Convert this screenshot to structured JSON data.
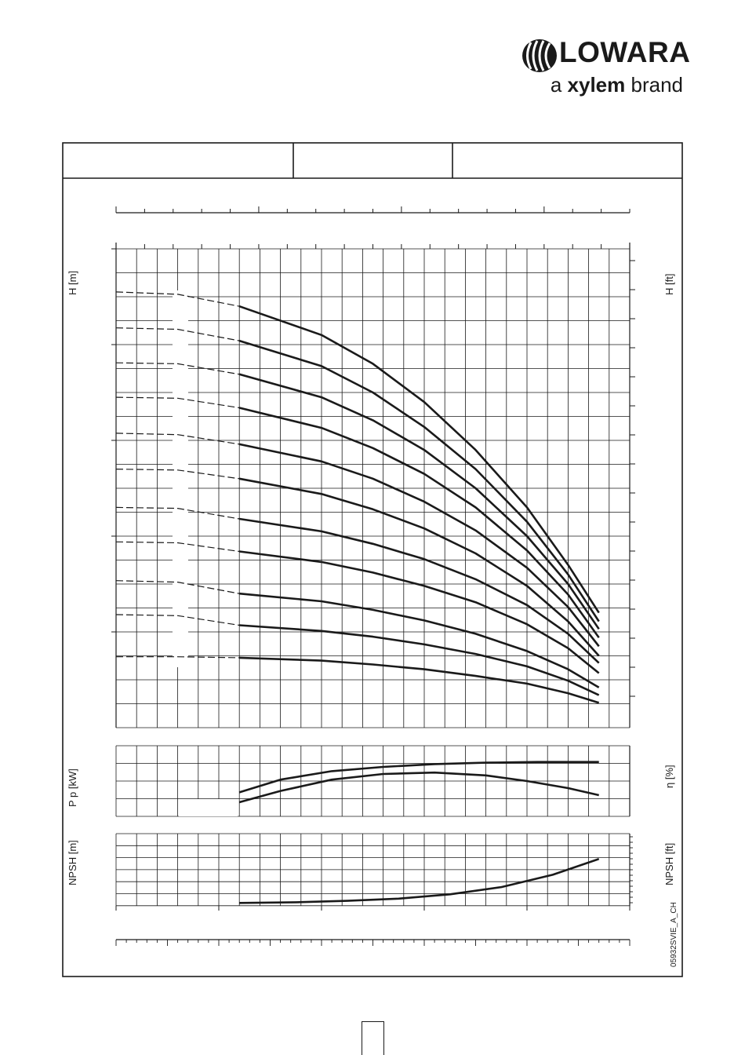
{
  "brand": {
    "name": "LOWARA",
    "tagline_prefix": "a ",
    "tagline_brand": "xylem",
    "tagline_suffix": " brand"
  },
  "header_table": {
    "cells": [
      "",
      "",
      ""
    ]
  },
  "drawing_code": "05932SVIE_A_CH",
  "chart_data": [
    {
      "type": "line",
      "name": "head",
      "ylabel_left": "H [m]",
      "ylabel_right": "H [ft]",
      "x_range": [
        0,
        1
      ],
      "y_range": [
        0,
        1
      ],
      "dashed_segment_x": [
        0,
        0.24
      ],
      "series": [
        {
          "x": [
            0,
            0.12,
            0.24,
            0.4,
            0.5,
            0.6,
            0.7,
            0.8,
            0.88,
            0.94
          ],
          "y": [
            0.91,
            0.905,
            0.88,
            0.82,
            0.76,
            0.68,
            0.58,
            0.46,
            0.34,
            0.24
          ]
        },
        {
          "x": [
            0,
            0.12,
            0.24,
            0.4,
            0.5,
            0.6,
            0.7,
            0.8,
            0.88,
            0.94
          ],
          "y": [
            0.835,
            0.832,
            0.808,
            0.755,
            0.7,
            0.628,
            0.54,
            0.43,
            0.32,
            0.222
          ]
        },
        {
          "x": [
            0,
            0.12,
            0.24,
            0.4,
            0.5,
            0.6,
            0.7,
            0.8,
            0.88,
            0.94
          ],
          "y": [
            0.762,
            0.76,
            0.738,
            0.69,
            0.642,
            0.58,
            0.5,
            0.4,
            0.3,
            0.206
          ]
        },
        {
          "x": [
            0,
            0.12,
            0.24,
            0.4,
            0.5,
            0.6,
            0.7,
            0.8,
            0.88,
            0.94
          ],
          "y": [
            0.69,
            0.688,
            0.668,
            0.626,
            0.584,
            0.53,
            0.46,
            0.37,
            0.278,
            0.188
          ]
        },
        {
          "x": [
            0,
            0.12,
            0.24,
            0.4,
            0.5,
            0.6,
            0.7,
            0.8,
            0.88,
            0.94
          ],
          "y": [
            0.615,
            0.612,
            0.592,
            0.556,
            0.52,
            0.472,
            0.412,
            0.334,
            0.252,
            0.17
          ]
        },
        {
          "x": [
            0,
            0.12,
            0.24,
            0.4,
            0.5,
            0.6,
            0.7,
            0.8,
            0.88,
            0.94
          ],
          "y": [
            0.54,
            0.538,
            0.52,
            0.488,
            0.456,
            0.416,
            0.364,
            0.296,
            0.222,
            0.15
          ]
        },
        {
          "x": [
            0,
            0.12,
            0.24,
            0.4,
            0.5,
            0.6,
            0.7,
            0.8,
            0.88,
            0.94
          ],
          "y": [
            0.46,
            0.458,
            0.436,
            0.41,
            0.384,
            0.352,
            0.31,
            0.256,
            0.196,
            0.135
          ]
        },
        {
          "x": [
            0,
            0.12,
            0.24,
            0.4,
            0.5,
            0.6,
            0.7,
            0.8,
            0.88,
            0.94
          ],
          "y": [
            0.388,
            0.386,
            0.368,
            0.346,
            0.324,
            0.296,
            0.262,
            0.216,
            0.166,
            0.114
          ]
        },
        {
          "x": [
            0,
            0.12,
            0.24,
            0.4,
            0.5,
            0.6,
            0.7,
            0.8,
            0.88,
            0.94
          ],
          "y": [
            0.307,
            0.304,
            0.28,
            0.264,
            0.246,
            0.224,
            0.196,
            0.16,
            0.122,
            0.084
          ]
        },
        {
          "x": [
            0,
            0.12,
            0.24,
            0.4,
            0.5,
            0.6,
            0.7,
            0.8,
            0.88,
            0.94
          ],
          "y": [
            0.236,
            0.234,
            0.214,
            0.202,
            0.19,
            0.174,
            0.154,
            0.128,
            0.098,
            0.068
          ]
        },
        {
          "x": [
            0,
            0.12,
            0.24,
            0.4,
            0.5,
            0.6,
            0.7,
            0.8,
            0.88,
            0.94
          ],
          "y": [
            0.148,
            0.148,
            0.146,
            0.14,
            0.132,
            0.122,
            0.108,
            0.092,
            0.072,
            0.052
          ]
        }
      ]
    },
    {
      "type": "line",
      "name": "power_efficiency",
      "ylabel_left": "P p [kW]",
      "ylabel_right": "η [%]",
      "x_range": [
        0,
        1
      ],
      "y_range": [
        0,
        1
      ],
      "series": [
        {
          "x": [
            0.24,
            0.32,
            0.42,
            0.52,
            0.62,
            0.72,
            0.82,
            0.94
          ],
          "y": [
            0.34,
            0.52,
            0.64,
            0.7,
            0.74,
            0.76,
            0.77,
            0.77
          ]
        },
        {
          "x": [
            0.24,
            0.32,
            0.42,
            0.52,
            0.62,
            0.72,
            0.8,
            0.88,
            0.94
          ],
          "y": [
            0.2,
            0.36,
            0.52,
            0.6,
            0.62,
            0.58,
            0.5,
            0.4,
            0.3
          ]
        }
      ]
    },
    {
      "type": "line",
      "name": "npsh",
      "ylabel_left": "NPSH [m]",
      "ylabel_right": "NPSH [ft]",
      "x_range": [
        0,
        1
      ],
      "y_range": [
        0,
        1
      ],
      "series": [
        {
          "x": [
            0.24,
            0.35,
            0.45,
            0.55,
            0.65,
            0.75,
            0.85,
            0.94
          ],
          "y": [
            0.04,
            0.05,
            0.07,
            0.1,
            0.16,
            0.26,
            0.43,
            0.65
          ]
        }
      ]
    }
  ]
}
